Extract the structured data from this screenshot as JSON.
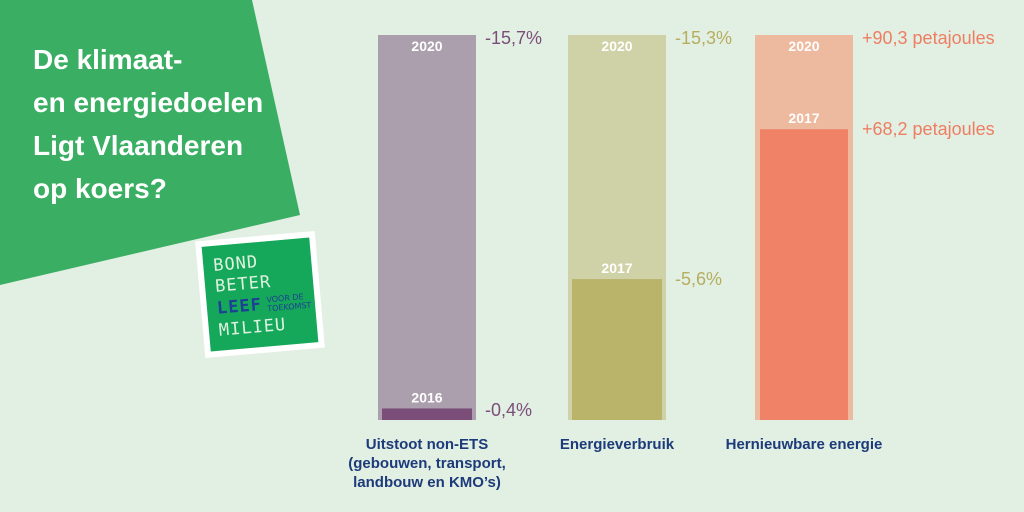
{
  "title_lines": [
    "De klimaat-",
    "en energiedoelen",
    "Ligt Vlaanderen",
    "op koers?"
  ],
  "logo": {
    "line1": "BOND",
    "line2": "BETER",
    "line3": "LEEF",
    "line4": "MILIEU",
    "tagline1": "VOOR DE",
    "tagline2": "TOEKOMST"
  },
  "colors": {
    "background": "#e2efe3",
    "banner": "#3aaf63",
    "category_text": "#1d3a7a"
  },
  "chart_data": {
    "type": "bar",
    "series": [
      {
        "category": "Uitstoot non-ETS",
        "category_lines": [
          "Uitstoot non-ETS",
          "(gebouwen, transport,",
          "landbouw en KMO’s)"
        ],
        "target_label": "2020",
        "target_value_label": "-15,7%",
        "target_value": -15.7,
        "current_label": "2016",
        "current_value_label": "-0,4%",
        "current_value": -0.4,
        "target_color": "#ab9fae",
        "current_color": "#7b4e7a",
        "text_color": "#7b4e7a"
      },
      {
        "category": "Energieverbruik",
        "category_lines": [
          "Energieverbruik"
        ],
        "target_label": "2020",
        "target_value_label": "-15,3%",
        "target_value": -15.3,
        "current_label": "2017",
        "current_value_label": "-5,6%",
        "current_value": -5.6,
        "target_color": "#cfd2a6",
        "current_color": "#b9b46a",
        "text_color": "#b6ae5e"
      },
      {
        "category": "Hernieuwbare energie",
        "category_lines": [
          "Hernieuwbare energie"
        ],
        "target_label": "2020",
        "target_value_label": "+90,3 petajoules",
        "target_value": 90.3,
        "current_label": "2017",
        "current_value_label": "+68,2 petajoules",
        "current_value": 68.2,
        "target_color": "#edb99f",
        "current_color": "#f08268",
        "text_color": "#ee7e62"
      }
    ]
  }
}
